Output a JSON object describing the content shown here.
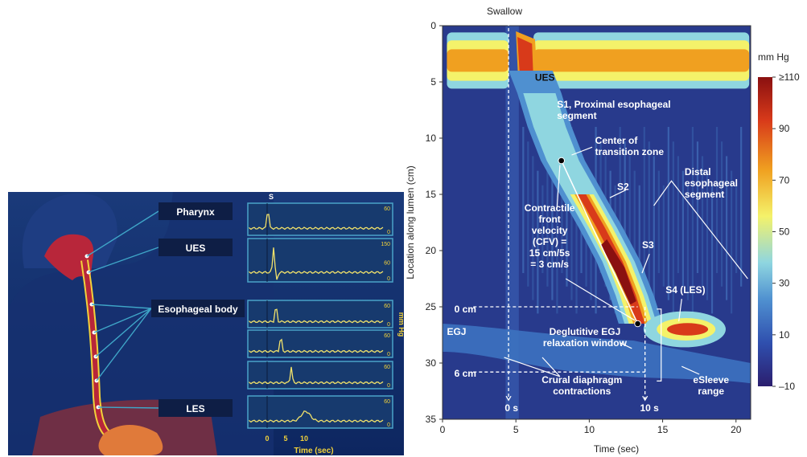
{
  "left_figure": {
    "labels": {
      "pharynx": "Pharynx",
      "ues": "UES",
      "body": "Esophageal body",
      "les": "LES"
    },
    "swallow_marker": "S",
    "unit_label": "mm Hg",
    "time_label": "Time (sec)",
    "time_ticks": [
      "0",
      "5",
      "10"
    ],
    "traces": [
      {
        "name": "pharynx",
        "top": "60",
        "bottom": "0"
      },
      {
        "name": "ues",
        "top": "150",
        "mid": "60",
        "bottom": "0"
      },
      {
        "name": "body-1",
        "top": "60",
        "bottom": "0"
      },
      {
        "name": "body-2",
        "top": "60",
        "bottom": "0"
      },
      {
        "name": "body-3",
        "top": "60",
        "bottom": "0"
      },
      {
        "name": "les",
        "top": "60",
        "bottom": "0"
      }
    ]
  },
  "chart_data": {
    "type": "heatmap",
    "title": "",
    "xlabel": "Time (sec)",
    "ylabel": "Location along lumen (cm)",
    "xlim": [
      0,
      21
    ],
    "ylim": [
      0,
      35
    ],
    "x_ticks": [
      "0",
      "5",
      "10",
      "15",
      "20"
    ],
    "y_ticks": [
      "0",
      "5",
      "10",
      "15",
      "20",
      "25",
      "30",
      "35"
    ],
    "colorbar": {
      "unit": "mm Hg",
      "range": [
        -10,
        110
      ],
      "tick_values": [
        110,
        90,
        70,
        50,
        30,
        10,
        -10
      ],
      "tick_labels": [
        "≥110",
        "90",
        "70",
        "50",
        "30",
        "10",
        "–10"
      ],
      "colors": [
        "#2b1e6e",
        "#2f4fae",
        "#4f90d0",
        "#8fd6e0",
        "#f4f26a",
        "#f0a020",
        "#d83a1a",
        "#8a1010"
      ]
    },
    "annotations": {
      "swallow": "Swallow",
      "ues": "UES",
      "s1": [
        "S1, Proximal esophageal",
        "segment"
      ],
      "center": [
        "Center of",
        "transition zone"
      ],
      "s2": "S2",
      "distal": [
        "Distal",
        "esophageal",
        "segment"
      ],
      "cfv": [
        "Contractile",
        "front",
        "velocity",
        "(CFV) =",
        "15 cm/5s",
        "= 3 cm/s"
      ],
      "s3": "S3",
      "s4": "S4 (LES)",
      "zero_cm": "0 cm",
      "egj": "EGJ",
      "deglutitive": [
        "Deglutitive EGJ",
        "relaxation window"
      ],
      "six_cm": "6 cm",
      "crural": [
        "Crural diaphragm",
        "contractions"
      ],
      "esleeve": [
        "eSleeve",
        "range"
      ],
      "zero_s": "0 s",
      "ten_s": "10 s"
    },
    "reference_points": [
      {
        "name": "cfv-start",
        "x": 8.1,
        "y": 12
      },
      {
        "name": "cfv-end",
        "x": 13.3,
        "y": 26.5
      }
    ],
    "reference_lines": {
      "swallow_time": 4.5,
      "window_end_time": 13.8,
      "top_depth": 25,
      "bottom_depth": 30.8
    }
  }
}
